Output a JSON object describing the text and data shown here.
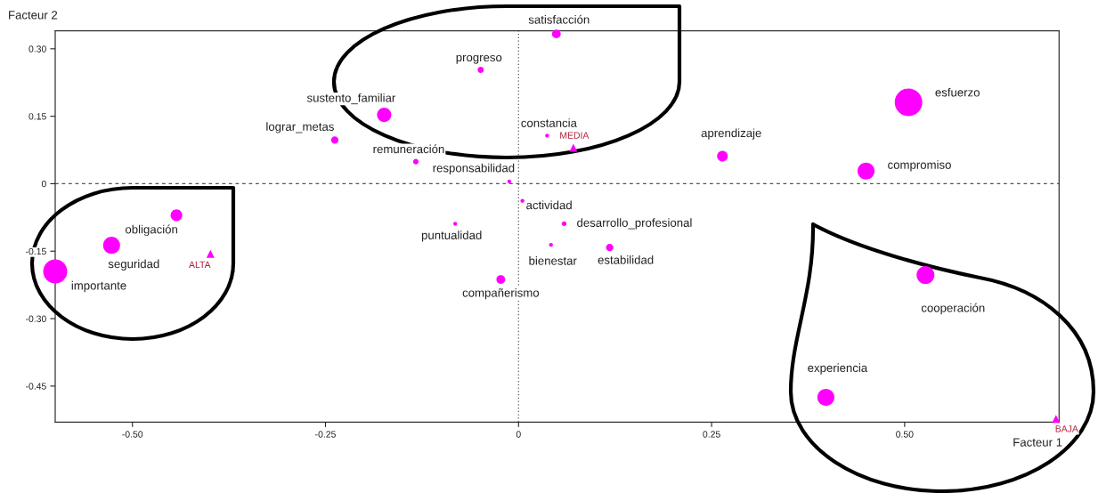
{
  "chart_data": {
    "type": "bubble",
    "xlabel": "Facteur 1",
    "ylabel": "Facteur 2",
    "marker": "circle",
    "xlim": [
      -0.6,
      0.7
    ],
    "ylim": [
      -0.53,
      0.34
    ],
    "xticks": [
      {
        "value": -0.5,
        "label": "-0.50"
      },
      {
        "value": -0.25,
        "label": "-0.25"
      },
      0,
      {
        "value": 0.25,
        "label": "0.25"
      },
      {
        "value": 0.5,
        "label": "0.50"
      }
    ],
    "yticks": [
      {
        "value": 0.3,
        "label": "0.30"
      },
      {
        "value": 0.15,
        "label": "0.15"
      },
      0,
      {
        "value": -0.15,
        "label": "-0.15"
      },
      {
        "value": -0.3,
        "label": "-0.30"
      },
      {
        "value": -0.45,
        "label": "-0.45"
      }
    ],
    "ref_lines": [
      {
        "axis": "x",
        "value": 0,
        "line_style": "dotted",
        "color": "#555555"
      },
      {
        "axis": "y",
        "value": 0,
        "line_style": "dashed",
        "color": "#555555"
      }
    ],
    "series": [
      {
        "name": "satisfacción",
        "color": "#ff00ff",
        "x": [
          0.049
        ],
        "values": [
          0.333
        ],
        "sizes": [
          0.1
        ]
      },
      {
        "name": "progreso",
        "color": "#ff00ff",
        "x": [
          -0.049
        ],
        "values": [
          0.253
        ],
        "sizes": [
          0.05
        ]
      },
      {
        "name": "sustento_familiar",
        "color": "#ff00ff",
        "x": [
          -0.174
        ],
        "values": [
          0.153
        ],
        "sizes": [
          0.27
        ]
      },
      {
        "name": "lograr_metas",
        "color": "#ff00ff",
        "x": [
          -0.238
        ],
        "values": [
          0.097
        ],
        "sizes": [
          0.07
        ]
      },
      {
        "name": "remuneración",
        "color": "#ff00ff",
        "x": [
          -0.133
        ],
        "values": [
          0.049
        ],
        "sizes": [
          0.04
        ]
      },
      {
        "name": "responsabilidad",
        "color": "#ff00ff",
        "x": [
          -0.012
        ],
        "values": [
          0.005
        ],
        "sizes": [
          0.02
        ]
      },
      {
        "name": "constancia",
        "color": "#ff00ff",
        "x": [
          0.037
        ],
        "values": [
          0.107
        ],
        "sizes": [
          0.02
        ]
      },
      {
        "name": "aprendizaje",
        "color": "#ff00ff",
        "x": [
          0.264
        ],
        "values": [
          0.061
        ],
        "sizes": [
          0.15
        ]
      },
      {
        "name": "actividad",
        "color": "#ff00ff",
        "x": [
          0.005
        ],
        "values": [
          -0.038
        ],
        "sizes": [
          0.02
        ]
      },
      {
        "name": "desarrollo_profesional",
        "color": "#ff00ff",
        "x": [
          0.059
        ],
        "values": [
          -0.089
        ],
        "sizes": [
          0.03
        ]
      },
      {
        "name": "puntualidad",
        "color": "#ff00ff",
        "x": [
          -0.082
        ],
        "values": [
          -0.089
        ],
        "sizes": [
          0.02
        ]
      },
      {
        "name": "bienestar",
        "color": "#ff00ff",
        "x": [
          0.042
        ],
        "values": [
          -0.136
        ],
        "sizes": [
          0.02
        ]
      },
      {
        "name": "estabilidad",
        "color": "#ff00ff",
        "x": [
          0.118
        ],
        "values": [
          -0.142
        ],
        "sizes": [
          0.07
        ]
      },
      {
        "name": "compañerismo",
        "color": "#ff00ff",
        "x": [
          -0.023
        ],
        "values": [
          -0.213
        ],
        "sizes": [
          0.1
        ]
      },
      {
        "name": "obligación",
        "color": "#ff00ff",
        "x": [
          -0.443
        ],
        "values": [
          -0.07
        ],
        "sizes": [
          0.18
        ]
      },
      {
        "name": "seguridad",
        "color": "#ff00ff",
        "x": [
          -0.527
        ],
        "values": [
          -0.137
        ],
        "sizes": [
          0.38
        ]
      },
      {
        "name": "importante",
        "color": "#ff00ff",
        "x": [
          -0.6
        ],
        "values": [
          -0.195
        ],
        "sizes": [
          0.76
        ]
      },
      {
        "name": "esfuerzo",
        "color": "#ff00ff",
        "x": [
          0.505
        ],
        "values": [
          0.181
        ],
        "sizes": [
          1
        ]
      },
      {
        "name": "compromiso",
        "color": "#ff00ff",
        "x": [
          0.45
        ],
        "values": [
          0.028
        ],
        "sizes": [
          0.38
        ]
      },
      {
        "name": "cooperación",
        "color": "#ff00ff",
        "x": [
          0.527
        ],
        "values": [
          -0.203
        ],
        "sizes": [
          0.42
        ]
      },
      {
        "name": "experiencia",
        "color": "#ff00ff",
        "x": [
          0.398
        ],
        "values": [
          -0.475
        ],
        "sizes": [
          0.38
        ]
      },
      {
        "name": "ALTA",
        "type": "scatter",
        "marker": "triangle",
        "color": "#ff00ff",
        "x": [
          -0.399
        ],
        "values": [
          -0.156
        ]
      },
      {
        "name": "MEDIA",
        "type": "scatter",
        "marker": "triangle",
        "color": "#ff00ff",
        "x": [
          0.071
        ],
        "values": [
          0.08
        ]
      },
      {
        "name": "BAJA",
        "type": "scatter",
        "marker": "triangle",
        "color": "#ff00ff",
        "x": [
          0.696
        ],
        "values": [
          -0.523
        ]
      }
    ]
  }
}
